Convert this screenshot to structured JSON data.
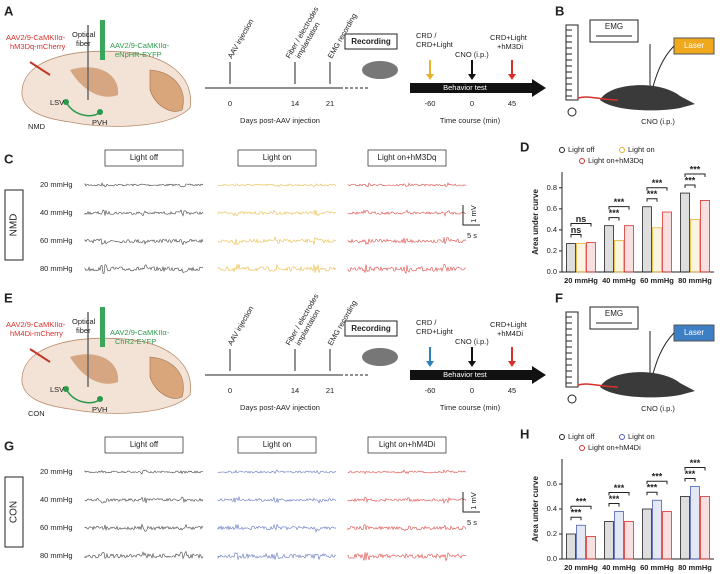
{
  "figure": [
    {
      "labels": [
        "A",
        "B",
        "C",
        "D"
      ],
      "virus_left": [
        "AAV2/9-CaMKIIα-",
        "hM3Dq-mCherry"
      ],
      "fiber": [
        "Optical",
        "fiber"
      ],
      "virus_right": [
        "AAV2/9-CaMKIIα-",
        "eNpHR-EYFP"
      ],
      "regions": [
        "LSV",
        "PVH"
      ],
      "group": "NMD",
      "events": [
        "AAV injection",
        "Fiber / electrodes",
        "implantation",
        "EMG recording"
      ],
      "days": [
        0,
        14,
        21
      ],
      "recording": "Recording",
      "days_axis": "Days post-AAV injection",
      "behavior": "Behavior  test",
      "course_events": [
        "CRD /",
        "CRD+Light",
        "CNO (i.p.)",
        "CRD+Light",
        "+hM3Di"
      ],
      "minutes": [
        -60,
        0,
        45
      ],
      "course_axis": "Time course (min)",
      "emg": "EMG",
      "laser": "Laser",
      "laser_color": "#f0a81c",
      "cno": "CNO (i.p.)",
      "scale": [
        "1 mV",
        "5 s"
      ]
    },
    {
      "labels": [
        "E",
        "F",
        "G",
        "H"
      ],
      "virus_left": [
        "AAV2/9-CaMKIIα-",
        "hM4Di-mCherry"
      ],
      "fiber": [
        "Optical",
        "fiber"
      ],
      "virus_right": [
        "AAV2/9-CaMKIIα-",
        "ChR2-EYFP"
      ],
      "regions": [
        "LSV",
        "PVH"
      ],
      "group": "CON",
      "events": [
        "AAV injection",
        "Fiber / electrodes",
        "implantation",
        "EMG recording"
      ],
      "days": [
        0,
        14,
        21
      ],
      "recording": "Recording",
      "days_axis": "Days post-AAV injection",
      "behavior": "Behavior  test",
      "course_events": [
        "CRD /",
        "CRD+Light",
        "CNO (i.p.)",
        "CRD+Light",
        "+hM4Di"
      ],
      "minutes": [
        -60,
        0,
        45
      ],
      "course_axis": "Time course (min)",
      "emg": "EMG",
      "laser": "Laser",
      "laser_color": "#3d7fc4",
      "cno": "CNO (i.p.)",
      "scale": [
        "1 mV",
        "5 s"
      ]
    }
  ],
  "chart_data": [
    {
      "type": "bar",
      "ylabel": "Area under curve",
      "categories": [
        "20 mmHg",
        "40 mmHg",
        "60 mmHg",
        "80 mmHg"
      ],
      "series": [
        {
          "name": "Light off",
          "color": "#222222",
          "values": [
            0.27,
            0.44,
            0.62,
            0.75
          ]
        },
        {
          "name": "Light on",
          "color": "#e6b32e",
          "values": [
            0.27,
            0.3,
            0.42,
            0.5
          ]
        },
        {
          "name": "Light on+hM3Dq",
          "color": "#d9302c",
          "values": [
            0.28,
            0.44,
            0.57,
            0.68
          ]
        }
      ],
      "ylim": [
        0,
        0.95
      ],
      "yticks": [
        {
          "value": 0,
          "label": "0.0"
        },
        0.2,
        0.4,
        0.6,
        0.8
      ],
      "annotations": [
        "ns",
        "ns",
        "***",
        "***",
        "***",
        "***",
        "***",
        "***"
      ]
    },
    {
      "type": "bar",
      "ylabel": "Area under curve",
      "categories": [
        "20 mmHg",
        "40 mmHg",
        "60 mmHg",
        "80 mmHg"
      ],
      "series": [
        {
          "name": "Light off",
          "color": "#222222",
          "values": [
            0.2,
            0.3,
            0.4,
            0.5
          ]
        },
        {
          "name": "Light on",
          "color": "#4a5fb5",
          "values": [
            0.27,
            0.38,
            0.47,
            0.58
          ]
        },
        {
          "name": "Light on+hM4Di",
          "color": "#d9302c",
          "values": [
            0.18,
            0.3,
            0.38,
            0.5
          ]
        }
      ],
      "ylim": [
        0,
        0.8
      ],
      "yticks": [
        {
          "value": 0,
          "label": "0.0"
        },
        0.2,
        0.4,
        0.6
      ],
      "annotations": [
        "***",
        "***",
        "***",
        "***",
        "***",
        "***",
        "***",
        "***"
      ]
    }
  ]
}
